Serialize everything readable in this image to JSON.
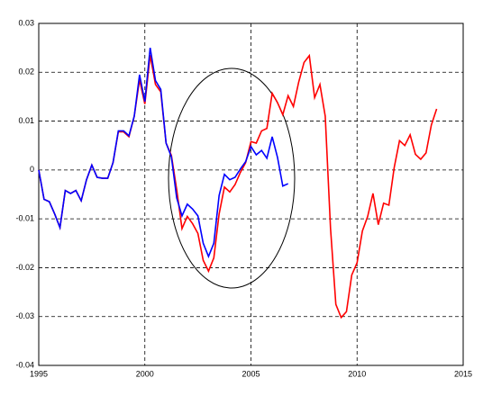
{
  "chart_data": {
    "type": "line",
    "x": [
      1995,
      1995.25,
      1995.5,
      1995.75,
      1996,
      1996.25,
      1996.5,
      1996.75,
      1997,
      1997.25,
      1997.5,
      1997.75,
      1998,
      1998.25,
      1998.5,
      1998.75,
      1999,
      1999.25,
      1999.5,
      1999.75,
      2000,
      2000.25,
      2000.5,
      2000.75,
      2001,
      2001.25,
      2001.5,
      2001.75,
      2002,
      2002.25,
      2002.5,
      2002.75,
      2003,
      2003.25,
      2003.5,
      2003.75,
      2004,
      2004.25,
      2004.5,
      2004.75,
      2005,
      2005.25,
      2005.5,
      2005.75,
      2006,
      2006.25,
      2006.5,
      2006.75,
      2007,
      2007.25,
      2007.5,
      2007.75,
      2008,
      2008.25,
      2008.5,
      2008.75,
      2009,
      2009.25,
      2009.5,
      2009.75,
      2010,
      2010.25,
      2010.5,
      2010.75,
      2011,
      2011.25,
      2011.5,
      2011.75,
      2012,
      2012.25,
      2012.5,
      2012.75,
      2013,
      2013.25,
      2013.5,
      2013.75
    ],
    "series": [
      {
        "color": "#ff0000",
        "values": [
          0,
          -0.006,
          -0.0065,
          -0.009,
          -0.0118,
          -0.0042,
          -0.0048,
          -0.0042,
          -0.0063,
          -0.002,
          0.001,
          -0.0015,
          -0.0017,
          -0.0017,
          0.0015,
          0.0078,
          0.0078,
          0.0068,
          0.011,
          0.0185,
          0.0135,
          0.0235,
          0.0175,
          0.016,
          0.0055,
          0.003,
          -0.004,
          -0.012,
          -0.0095,
          -0.011,
          -0.013,
          -0.0185,
          -0.0207,
          -0.018,
          -0.009,
          -0.0035,
          -0.0045,
          -0.003,
          -0.0005,
          0.0015,
          0.0058,
          0.0055,
          0.008,
          0.0085,
          0.0157,
          0.0138,
          0.0113,
          0.0152,
          0.013,
          0.018,
          0.022,
          0.0234,
          0.0148,
          0.0175,
          0.011,
          -0.012,
          -0.0275,
          -0.0302,
          -0.029,
          -0.0215,
          -0.019,
          -0.0125,
          -0.0095,
          -0.0048,
          -0.0112,
          -0.0068,
          -0.0072,
          0.0005,
          0.006,
          0.005,
          0.0072,
          0.0032,
          0.0022,
          0.0035,
          0.0092,
          0.0125
        ]
      },
      {
        "color": "#0000ff",
        "values": [
          0,
          -0.006,
          -0.0065,
          -0.009,
          -0.0118,
          -0.0042,
          -0.0048,
          -0.0042,
          -0.0063,
          -0.002,
          0.001,
          -0.0015,
          -0.0017,
          -0.0017,
          0.0015,
          0.008,
          0.008,
          0.007,
          0.011,
          0.0195,
          0.014,
          0.025,
          0.0183,
          0.0165,
          0.0055,
          0.0027,
          -0.0057,
          -0.0094,
          -0.007,
          -0.008,
          -0.0094,
          -0.015,
          -0.0177,
          -0.015,
          -0.0052,
          -0.0009,
          -0.002,
          -0.0015,
          0.0002,
          0.0017,
          0.0048,
          0.0031,
          0.004,
          0.0024,
          0.0068,
          0.0026,
          -0.0033,
          -0.0028,
          null,
          null,
          null,
          null,
          null,
          null,
          null,
          null,
          null,
          null,
          null,
          null,
          null,
          null,
          null,
          null,
          null,
          null,
          null,
          null,
          null,
          null,
          null,
          null,
          null,
          null,
          null,
          null
        ]
      }
    ],
    "xlim": [
      1995,
      2015
    ],
    "xticks": [
      1995,
      2000,
      2005,
      2010,
      2015
    ],
    "ylim": [
      -0.04,
      0.03
    ],
    "yticks": [
      -0.04,
      -0.03,
      -0.02,
      -0.01,
      0,
      0.01,
      0.02,
      0.03
    ],
    "grid": true
  }
}
